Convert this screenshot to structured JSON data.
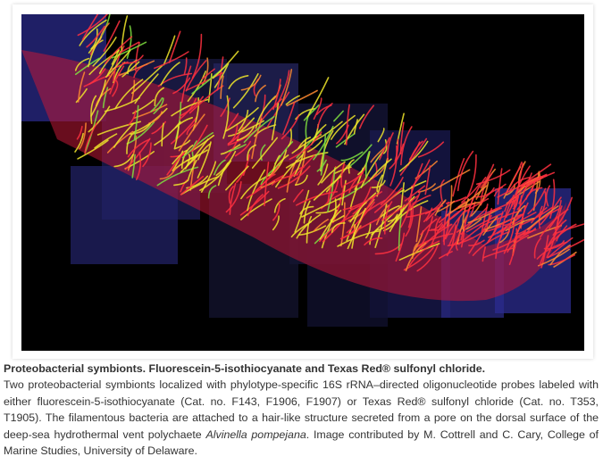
{
  "figure": {
    "image_alt": "Fluorescence micrograph montage of filamentous proteobacterial symbionts (red and yellow-green filaments) on black background",
    "colors": {
      "background": "#000000",
      "texas_red": "#ff2a3a",
      "fluorescein": "#e8f020",
      "panel_tint": "#2a2a80"
    }
  },
  "caption": {
    "title": "Proteobacterial symbionts. Fluorescein-5-isothiocyanate and Texas Red® sulfonyl chloride.",
    "body_part1": "Two proteobacterial symbionts localized with phylotype-specific 16S rRNA–directed oligonucleotide probes labeled with either fluorescein-5-isothiocyanate (Cat. no. F143, F1906, F1907) or Texas Red® sulfonyl chloride (Cat. no. T353, T1905). The filamentous bacteria are attached to a hair-like structure secreted from a pore on the dorsal surface of the deep-sea hydrothermal vent polychaete ",
    "species": "Alvinella pompejana",
    "body_part2": ". Image contributed by M. Cottrell and C. Cary, College of Marine Studies, University of Delaware."
  }
}
